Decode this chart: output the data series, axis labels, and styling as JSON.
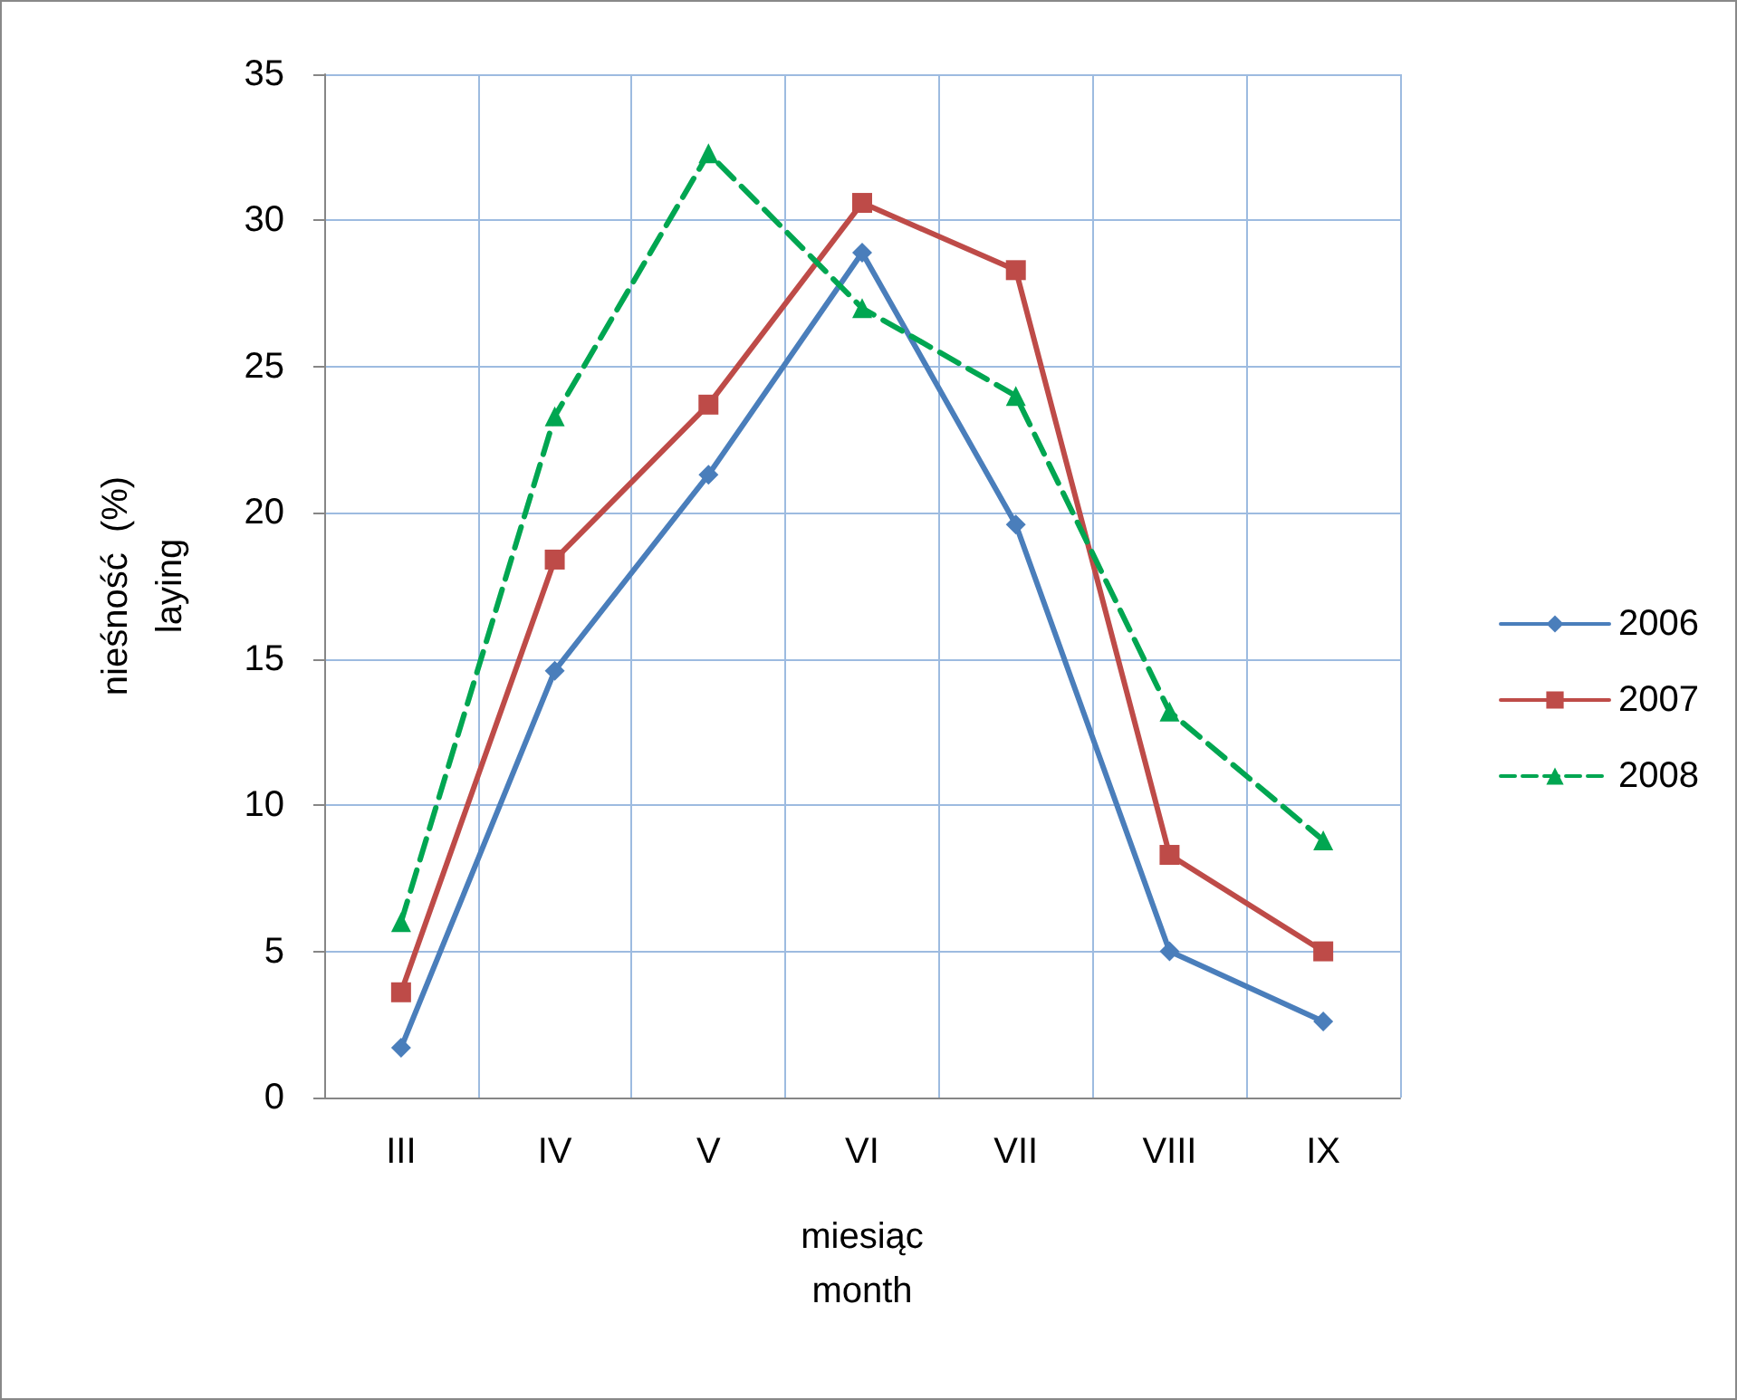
{
  "chart_data": {
    "type": "line",
    "xlabel": "miesiąc\nmonth",
    "ylabel": "nieśność  (%)\nlaying",
    "categories": [
      "III",
      "IV",
      "V",
      "VI",
      "VII",
      "VIII",
      "IX"
    ],
    "series": [
      {
        "name": "2006",
        "color": "#4a7ebb",
        "marker": "diamond",
        "line_style": "solid",
        "values": [
          1.7,
          14.6,
          21.3,
          28.9,
          19.6,
          5.0,
          2.6
        ]
      },
      {
        "name": "2007",
        "color": "#be4b48",
        "marker": "square",
        "line_style": "solid",
        "values": [
          3.6,
          18.4,
          23.7,
          30.6,
          28.3,
          8.3,
          5.0
        ]
      },
      {
        "name": "2008",
        "color": "#00a651",
        "marker": "triangle",
        "line_style": "dashed",
        "values": [
          6.0,
          23.3,
          32.3,
          27.0,
          24.0,
          13.2,
          8.8
        ]
      }
    ],
    "ylim": [
      0,
      35
    ],
    "yticks": [
      0,
      5,
      10,
      15,
      20,
      25,
      30,
      35
    ],
    "grid": true,
    "legend": "right"
  }
}
